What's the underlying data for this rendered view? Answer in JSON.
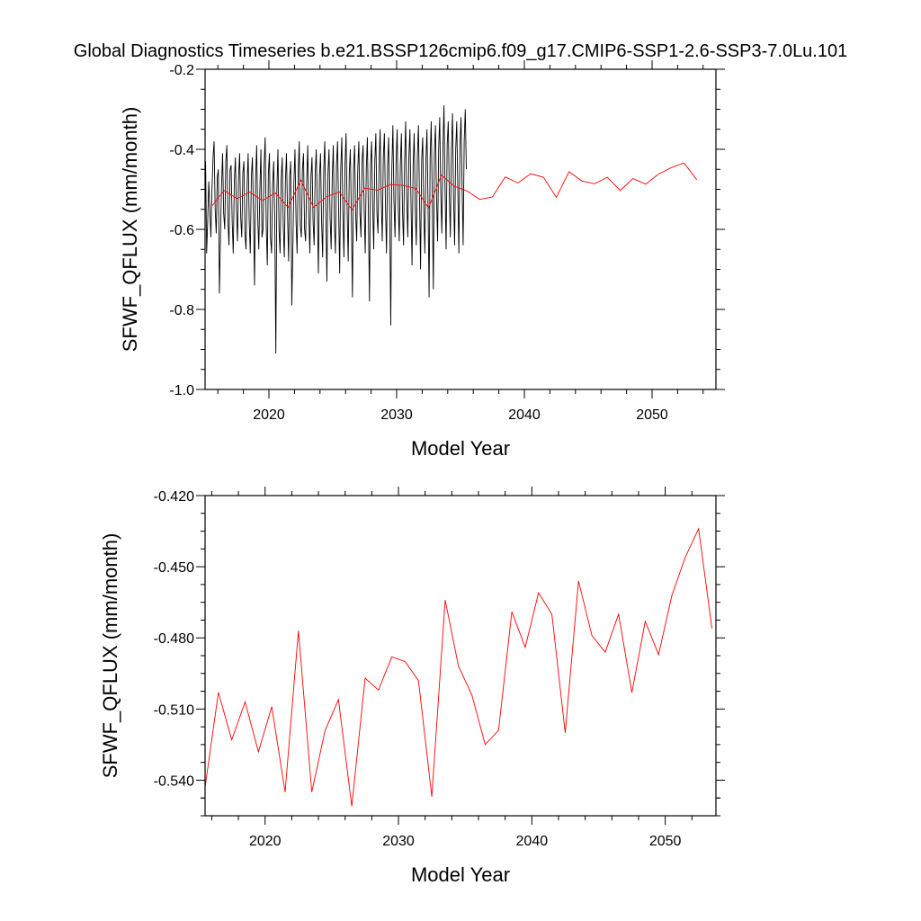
{
  "title": "Global Diagnostics Timeseries b.e21.BSSP126cmip6.f09_g17.CMIP6-SSP1-2.6-SSP3-7.0Lu.101",
  "colors": {
    "monthly": "#000000",
    "annual": "#ff0000"
  },
  "chart_data": [
    {
      "type": "line",
      "xlabel": "Model Year",
      "ylabel": "SFWF_QFLUX (mm/month)",
      "xlim": [
        2015,
        2055
      ],
      "ylim": [
        -1.0,
        -0.2
      ],
      "xticks": [
        2020,
        2030,
        2040,
        2050
      ],
      "xtick_labels": [
        "2020",
        "2030",
        "2040",
        "2050"
      ],
      "yticks": [
        -1.0,
        -0.8,
        -0.6,
        -0.4,
        -0.2
      ],
      "ytick_labels": [
        "-1.0",
        "-0.8",
        "-0.6",
        "-0.4",
        "-0.2"
      ],
      "series": [
        {
          "color": "#000000",
          "x_start": 2015.04,
          "x_step": 0.0833333,
          "values": [
            -0.43,
            -0.66,
            -0.58,
            -0.48,
            -0.55,
            -0.62,
            -0.5,
            -0.42,
            -0.38,
            -0.55,
            -0.61,
            -0.47,
            -0.45,
            -0.76,
            -0.62,
            -0.49,
            -0.41,
            -0.56,
            -0.6,
            -0.43,
            -0.39,
            -0.58,
            -0.64,
            -0.45,
            -0.44,
            -0.58,
            -0.66,
            -0.48,
            -0.42,
            -0.55,
            -0.63,
            -0.47,
            -0.41,
            -0.57,
            -0.62,
            -0.46,
            -0.43,
            -0.61,
            -0.65,
            -0.49,
            -0.41,
            -0.58,
            -0.66,
            -0.47,
            -0.42,
            -0.56,
            -0.74,
            -0.48,
            -0.39,
            -0.57,
            -0.65,
            -0.5,
            -0.4,
            -0.62,
            -0.6,
            -0.44,
            -0.37,
            -0.59,
            -0.69,
            -0.46,
            -0.41,
            -0.62,
            -0.66,
            -0.49,
            -0.43,
            -0.58,
            -0.91,
            -0.5,
            -0.4,
            -0.6,
            -0.66,
            -0.48,
            -0.42,
            -0.59,
            -0.67,
            -0.48,
            -0.41,
            -0.56,
            -0.68,
            -0.47,
            -0.43,
            -0.79,
            -0.65,
            -0.48,
            -0.4,
            -0.58,
            -0.66,
            -0.46,
            -0.38,
            -0.59,
            -0.62,
            -0.45,
            -0.41,
            -0.6,
            -0.63,
            -0.48,
            -0.39,
            -0.57,
            -0.66,
            -0.47,
            -0.42,
            -0.58,
            -0.64,
            -0.46,
            -0.4,
            -0.55,
            -0.71,
            -0.47,
            -0.41,
            -0.58,
            -0.67,
            -0.45,
            -0.38,
            -0.56,
            -0.73,
            -0.46,
            -0.4,
            -0.57,
            -0.65,
            -0.47,
            -0.39,
            -0.58,
            -0.66,
            -0.44,
            -0.38,
            -0.55,
            -0.71,
            -0.45,
            -0.37,
            -0.56,
            -0.67,
            -0.44,
            -0.36,
            -0.55,
            -0.68,
            -0.46,
            -0.4,
            -0.57,
            -0.77,
            -0.45,
            -0.39,
            -0.56,
            -0.63,
            -0.45,
            -0.38,
            -0.56,
            -0.62,
            -0.43,
            -0.39,
            -0.55,
            -0.66,
            -0.45,
            -0.37,
            -0.57,
            -0.78,
            -0.44,
            -0.38,
            -0.54,
            -0.65,
            -0.43,
            -0.36,
            -0.56,
            -0.61,
            -0.44,
            -0.35,
            -0.52,
            -0.63,
            -0.42,
            -0.36,
            -0.54,
            -0.66,
            -0.44,
            -0.37,
            -0.56,
            -0.84,
            -0.45,
            -0.34,
            -0.53,
            -0.62,
            -0.43,
            -0.35,
            -0.54,
            -0.63,
            -0.44,
            -0.36,
            -0.55,
            -0.64,
            -0.43,
            -0.33,
            -0.52,
            -0.62,
            -0.42,
            -0.35,
            -0.53,
            -0.69,
            -0.44,
            -0.36,
            -0.54,
            -0.64,
            -0.42,
            -0.34,
            -0.52,
            -0.7,
            -0.43,
            -0.37,
            -0.55,
            -0.66,
            -0.43,
            -0.35,
            -0.53,
            -0.77,
            -0.42,
            -0.33,
            -0.52,
            -0.75,
            -0.41,
            -0.34,
            -0.52,
            -0.63,
            -0.4,
            -0.32,
            -0.51,
            -0.61,
            -0.4,
            -0.29,
            -0.5,
            -0.65,
            -0.39,
            -0.33,
            -0.51,
            -0.62,
            -0.4,
            -0.31,
            -0.52,
            -0.64,
            -0.4,
            -0.33,
            -0.5,
            -0.66,
            -0.39,
            -0.32,
            -0.49,
            -0.64,
            -0.38,
            -0.3,
            -0.45
          ]
        },
        {
          "color": "#ff0000",
          "x_start": 2015.5,
          "x_step": 1,
          "values": [
            -0.543,
            -0.503,
            -0.523,
            -0.507,
            -0.528,
            -0.509,
            -0.545,
            -0.477,
            -0.545,
            -0.519,
            -0.506,
            -0.551,
            -0.497,
            -0.502,
            -0.488,
            -0.49,
            -0.498,
            -0.547,
            -0.464,
            -0.492,
            -0.504,
            -0.525,
            -0.519,
            -0.469,
            -0.484,
            -0.461,
            -0.47,
            -0.52,
            -0.456,
            -0.479,
            -0.486,
            -0.47,
            -0.503,
            -0.473,
            -0.487,
            -0.462,
            -0.446,
            -0.434,
            -0.476
          ]
        }
      ]
    },
    {
      "type": "line",
      "xlabel": "Model Year",
      "ylabel": "SFWF_QFLUX (mm/month)",
      "xlim": [
        2015.5,
        2053.8
      ],
      "ylim": [
        -0.555,
        -0.42
      ],
      "xticks": [
        2020,
        2030,
        2040,
        2050
      ],
      "xtick_labels": [
        "2020",
        "2030",
        "2040",
        "2050"
      ],
      "yticks": [
        -0.54,
        -0.51,
        -0.48,
        -0.45,
        -0.42
      ],
      "ytick_labels": [
        "-0.540",
        "-0.510",
        "-0.480",
        "-0.450",
        "-0.420"
      ],
      "series": [
        {
          "color": "#ff0000",
          "x_start": 2015.5,
          "x_step": 1,
          "values": [
            -0.543,
            -0.503,
            -0.523,
            -0.507,
            -0.528,
            -0.509,
            -0.545,
            -0.477,
            -0.545,
            -0.519,
            -0.506,
            -0.551,
            -0.497,
            -0.502,
            -0.488,
            -0.49,
            -0.498,
            -0.547,
            -0.464,
            -0.492,
            -0.504,
            -0.525,
            -0.519,
            -0.469,
            -0.484,
            -0.461,
            -0.47,
            -0.52,
            -0.456,
            -0.479,
            -0.486,
            -0.47,
            -0.503,
            -0.473,
            -0.487,
            -0.462,
            -0.446,
            -0.434,
            -0.476
          ]
        }
      ]
    }
  ]
}
